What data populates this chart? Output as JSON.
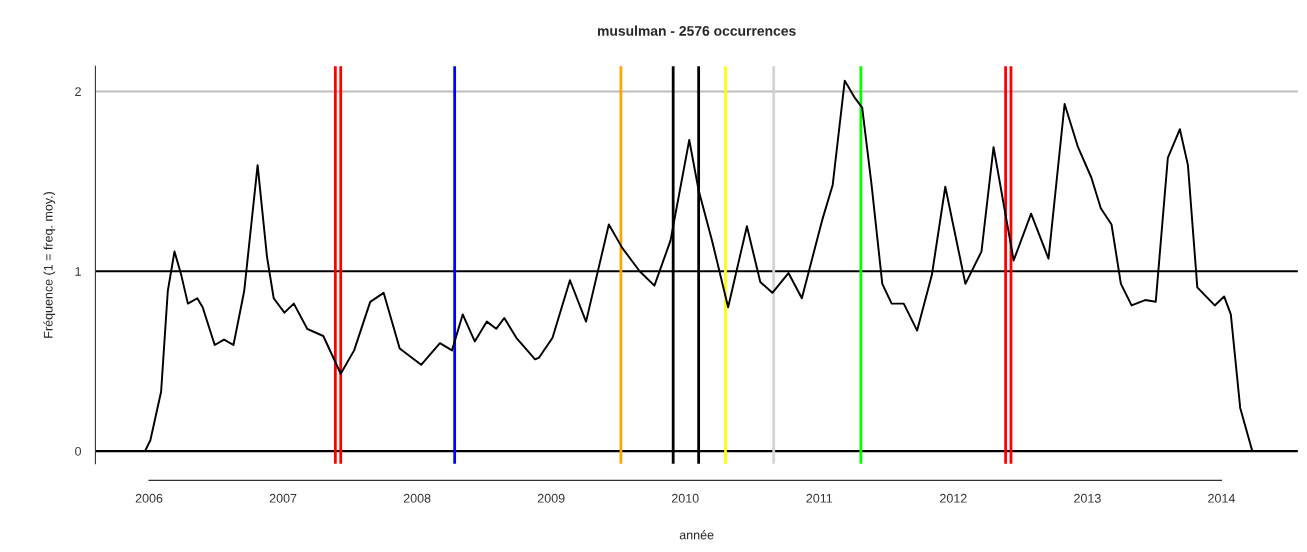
{
  "chart_data": {
    "type": "line",
    "title": "musulman - 2576 occurrences",
    "xlabel": "année",
    "ylabel": "Fréquence (1 = freq. moy.)",
    "xlim": [
      2005.6,
      2014.57
    ],
    "ylim": [
      -0.07,
      2.14
    ],
    "xticks": [
      2006,
      2007,
      2008,
      2009,
      2010,
      2011,
      2012,
      2013,
      2014
    ],
    "yticks": [
      0,
      1,
      2
    ],
    "grid": false,
    "legend": false,
    "marker": "none",
    "line_style": "solid",
    "series": [
      {
        "color": "#000000",
        "x": [
          2005.97,
          2006.01,
          2006.09,
          2006.14,
          2006.19,
          2006.24,
          2006.29,
          2006.36,
          2006.4,
          2006.49,
          2006.56,
          2006.63,
          2006.71,
          2006.81,
          2006.88,
          2006.93,
          2007.01,
          2007.08,
          2007.18,
          2007.3,
          2007.43,
          2007.53,
          2007.65,
          2007.75,
          2007.87,
          2008.03,
          2008.17,
          2008.26,
          2008.34,
          2008.43,
          2008.52,
          2008.59,
          2008.65,
          2008.74,
          2008.88,
          2008.91,
          2009.01,
          2009.14,
          2009.26,
          2009.43,
          2009.53,
          2009.66,
          2009.77,
          2009.89,
          2010.03,
          2010.1,
          2010.2,
          2010.32,
          2010.46,
          2010.56,
          2010.65,
          2010.77,
          2010.87,
          2011.02,
          2011.1,
          2011.19,
          2011.26,
          2011.32,
          2011.39,
          2011.47,
          2011.54,
          2011.63,
          2011.73,
          2011.84,
          2011.94,
          2012.09,
          2012.21,
          2012.3,
          2012.45,
          2012.58,
          2012.71,
          2012.83,
          2012.93,
          2013.03,
          2013.1,
          2013.18,
          2013.25,
          2013.33,
          2013.43,
          2013.51,
          2013.6,
          2013.69,
          2013.75,
          2013.82,
          2013.95,
          2014.02,
          2014.07,
          2014.14,
          2014.23
        ],
        "values": [
          0.0,
          0.06,
          0.33,
          0.89,
          1.11,
          0.98,
          0.82,
          0.85,
          0.8,
          0.59,
          0.62,
          0.59,
          0.89,
          1.59,
          1.08,
          0.85,
          0.77,
          0.82,
          0.68,
          0.64,
          0.43,
          0.56,
          0.83,
          0.88,
          0.57,
          0.48,
          0.6,
          0.56,
          0.76,
          0.61,
          0.72,
          0.68,
          0.74,
          0.63,
          0.51,
          0.52,
          0.63,
          0.95,
          0.72,
          1.26,
          1.13,
          1.0,
          0.92,
          1.17,
          1.73,
          1.45,
          1.17,
          0.8,
          1.25,
          0.94,
          0.88,
          0.99,
          0.85,
          1.28,
          1.48,
          2.06,
          1.97,
          1.91,
          1.48,
          0.93,
          0.82,
          0.82,
          0.67,
          0.98,
          1.47,
          0.93,
          1.11,
          1.69,
          1.06,
          1.32,
          1.07,
          1.93,
          1.69,
          1.52,
          1.35,
          1.26,
          0.93,
          0.81,
          0.84,
          0.83,
          1.63,
          1.79,
          1.59,
          0.91,
          0.81,
          0.86,
          0.76,
          0.24,
          0.0
        ]
      }
    ],
    "ref_lines": [
      {
        "axis": "y",
        "value": 0,
        "color": "#000000"
      },
      {
        "axis": "y",
        "value": 1,
        "color": "#000000"
      },
      {
        "axis": "y",
        "value": 2,
        "color": "#bebebe"
      },
      {
        "axis": "x",
        "value": 2007.39,
        "color": "#ff0000"
      },
      {
        "axis": "x",
        "value": 2007.43,
        "color": "#ff0000"
      },
      {
        "axis": "x",
        "value": 2008.28,
        "color": "#0000ff"
      },
      {
        "axis": "x",
        "value": 2009.52,
        "color": "#ffa500"
      },
      {
        "axis": "x",
        "value": 2009.91,
        "color": "#000000"
      },
      {
        "axis": "x",
        "value": 2010.1,
        "color": "#000000"
      },
      {
        "axis": "x",
        "value": 2010.3,
        "color": "#ffff00"
      },
      {
        "axis": "x",
        "value": 2010.66,
        "color": "#d3d3d3"
      },
      {
        "axis": "x",
        "value": 2011.31,
        "color": "#00ff00"
      },
      {
        "axis": "x",
        "value": 2012.39,
        "color": "#ff0000"
      },
      {
        "axis": "x",
        "value": 2012.43,
        "color": "#ff0000"
      }
    ]
  }
}
